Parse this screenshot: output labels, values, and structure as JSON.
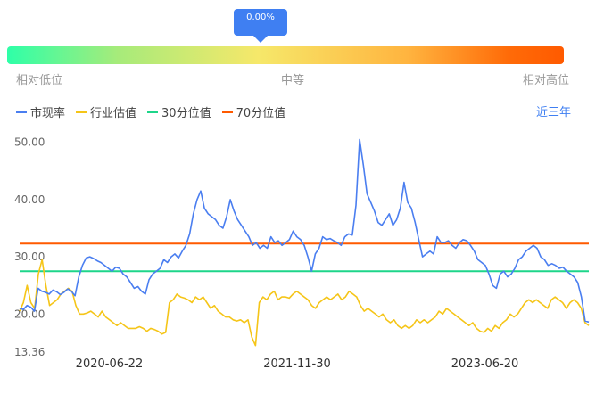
{
  "gauge": {
    "pointer_text": "0.00%",
    "value": 0,
    "labels": {
      "low": "相对低位",
      "mid": "中等",
      "high": "相对高位"
    }
  },
  "period": "近三年",
  "chart_data": {
    "type": "line",
    "ylim": [
      13.36,
      51.5
    ],
    "yticks": [
      "13.36",
      "20.00",
      "30.00",
      "40.00",
      "50.00"
    ],
    "ytick_values": [
      13.36,
      20,
      30,
      40,
      50
    ],
    "xticks": [
      "2020-06-22",
      "2021-11-30",
      "2023-06-20"
    ],
    "legend_position": "top-left",
    "series": [
      {
        "name": "市现率",
        "color": "#4a7ef0",
        "values": [
          21.0,
          20.8,
          21.5,
          21.2,
          20.5,
          24.5,
          24.0,
          23.8,
          23.5,
          24.2,
          23.9,
          23.4,
          23.8,
          24.4,
          24.0,
          23.2,
          26.5,
          28.5,
          29.8,
          30.0,
          29.7,
          29.3,
          29.0,
          28.5,
          28.0,
          27.5,
          28.2,
          28.0,
          27.0,
          26.5,
          25.5,
          24.5,
          24.8,
          24.0,
          23.5,
          26.0,
          27.0,
          27.5,
          28.0,
          29.5,
          29.0,
          30.0,
          30.5,
          29.8,
          31.0,
          32.0,
          34.0,
          37.5,
          40.0,
          41.5,
          38.5,
          37.5,
          37.0,
          36.5,
          35.5,
          35.0,
          37.0,
          40.0,
          38.0,
          36.5,
          35.5,
          34.5,
          33.5,
          32.0,
          32.5,
          31.5,
          32.0,
          31.5,
          33.5,
          32.5,
          32.8,
          32.0,
          32.5,
          33.0,
          34.5,
          33.5,
          33.0,
          32.0,
          30.0,
          27.5,
          30.5,
          31.5,
          33.5,
          33.0,
          33.2,
          32.8,
          32.5,
          32.0,
          33.5,
          34.0,
          33.8,
          39.0,
          50.5,
          46.0,
          41.0,
          39.5,
          38.0,
          36.0,
          35.5,
          36.5,
          37.5,
          35.5,
          36.5,
          38.5,
          43.0,
          39.5,
          38.5,
          36.0,
          33.0,
          30.0,
          30.5,
          31.0,
          30.5,
          33.5,
          32.5,
          32.5,
          32.8,
          32.0,
          31.5,
          32.5,
          33.0,
          32.8,
          32.0,
          31.0,
          29.5,
          29.0,
          28.5,
          27.0,
          25.0,
          24.5,
          27.0,
          27.5,
          26.5,
          27.0,
          28.0,
          29.5,
          30.0,
          31.0,
          31.5,
          32.0,
          31.5,
          30.0,
          29.5,
          28.5,
          28.8,
          28.5,
          28.0,
          28.2,
          27.5,
          27.0,
          26.5,
          25.5,
          23.0,
          18.8,
          18.6
        ]
      },
      {
        "name": "行业估值",
        "color": "#f5c518",
        "values": [
          20.5,
          22.0,
          25.0,
          22.0,
          21.0,
          27.0,
          29.5,
          25.0,
          21.5,
          22.0,
          22.5,
          23.5,
          24.0,
          24.5,
          24.0,
          21.5,
          20.0,
          20.0,
          20.2,
          20.5,
          20.0,
          19.5,
          20.5,
          19.5,
          19.0,
          18.5,
          18.0,
          18.5,
          18.0,
          17.5,
          17.5,
          17.5,
          17.8,
          17.5,
          17.0,
          17.5,
          17.3,
          17.0,
          16.5,
          16.8,
          22.0,
          22.5,
          23.5,
          23.0,
          22.8,
          22.5,
          22.0,
          23.0,
          22.5,
          23.0,
          22.0,
          21.0,
          21.5,
          20.5,
          20.0,
          19.5,
          19.5,
          19.0,
          18.8,
          19.0,
          18.5,
          19.0,
          16.0,
          14.5,
          22.0,
          23.0,
          22.5,
          23.5,
          24.0,
          22.5,
          23.0,
          23.0,
          22.8,
          23.5,
          24.0,
          23.5,
          23.0,
          22.5,
          21.5,
          21.0,
          22.0,
          22.5,
          23.0,
          22.5,
          23.0,
          23.5,
          22.5,
          23.0,
          24.0,
          23.5,
          23.0,
          21.5,
          20.5,
          21.0,
          20.5,
          20.0,
          19.5,
          20.0,
          19.0,
          18.5,
          19.0,
          18.0,
          17.5,
          18.0,
          17.5,
          18.0,
          19.0,
          18.5,
          19.0,
          18.5,
          19.0,
          19.5,
          20.5,
          20.0,
          21.0,
          20.5,
          20.0,
          19.5,
          19.0,
          18.5,
          18.0,
          18.5,
          17.5,
          17.0,
          16.8,
          17.5,
          17.0,
          18.0,
          17.5,
          18.5,
          19.0,
          20.0,
          19.5,
          20.0,
          21.0,
          22.0,
          22.5,
          22.0,
          22.5,
          22.0,
          21.5,
          21.0,
          22.5,
          23.0,
          22.5,
          22.0,
          21.0,
          22.0,
          22.5,
          22.0,
          21.0,
          18.5,
          18.0
        ]
      },
      {
        "name": "30分位值",
        "color": "#1ed58a",
        "values": [
          27.5,
          27.5
        ]
      },
      {
        "name": "70分位值",
        "color": "#ff5a00",
        "values": [
          32.3,
          32.3
        ]
      }
    ]
  }
}
